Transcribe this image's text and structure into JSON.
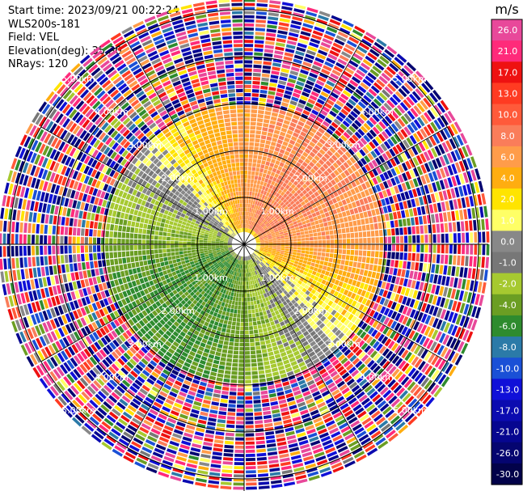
{
  "header": {
    "start_time": "Start time: 2023/09/21 00:22:24",
    "instrument": "WLS200s-181",
    "field": "Field: VEL",
    "elevation": "Elevation(deg): 35.30",
    "nrays": "NRays: 120"
  },
  "colorbar": {
    "unit": "m/s",
    "ticks": [
      "26.0",
      "21.0",
      "17.0",
      "13.0",
      "10.0",
      "8.0",
      "6.0",
      "4.0",
      "2.0",
      "1.0",
      "0.0",
      "-1.0",
      "-2.0",
      "-4.0",
      "-6.0",
      "-8.0",
      "-10.0",
      "-13.0",
      "-17.0",
      "-21.0",
      "-26.0",
      "-30.0"
    ],
    "colors": [
      "#e8489a",
      "#ff2a7a",
      "#ee1111",
      "#ff3b22",
      "#ff5a3a",
      "#fa7d5a",
      "#ff9c4a",
      "#ffad10",
      "#ffe400",
      "#ffff66",
      "#888888",
      "#777777",
      "#a6c930",
      "#6b9e23",
      "#2e8b2e",
      "#2b7aa8",
      "#1a50d6",
      "#1010d8",
      "#0b0bb0",
      "#060690",
      "#050570",
      "#02024a"
    ]
  },
  "chart_data": {
    "type": "ppi",
    "field": "VEL",
    "units": "m/s",
    "elevation_deg": 35.3,
    "n_rays": 120,
    "range_rings_km": [
      1.0,
      2.0,
      3.0,
      4.0,
      5.0
    ],
    "ring_labels": [
      "1.00km",
      "2.00km",
      "3.00km",
      "4.00km",
      "5.00km"
    ],
    "spoke_angles_deg": [
      0,
      30,
      60,
      90,
      120,
      150,
      180,
      210,
      240,
      270,
      300,
      330
    ],
    "vmin": -30.0,
    "vmax": 30.0,
    "pattern": "north-east sector positive (2 to 10 m/s), south-west sector negative (-2 to -8 m/s), noisy outer ranges beyond 3 km"
  }
}
